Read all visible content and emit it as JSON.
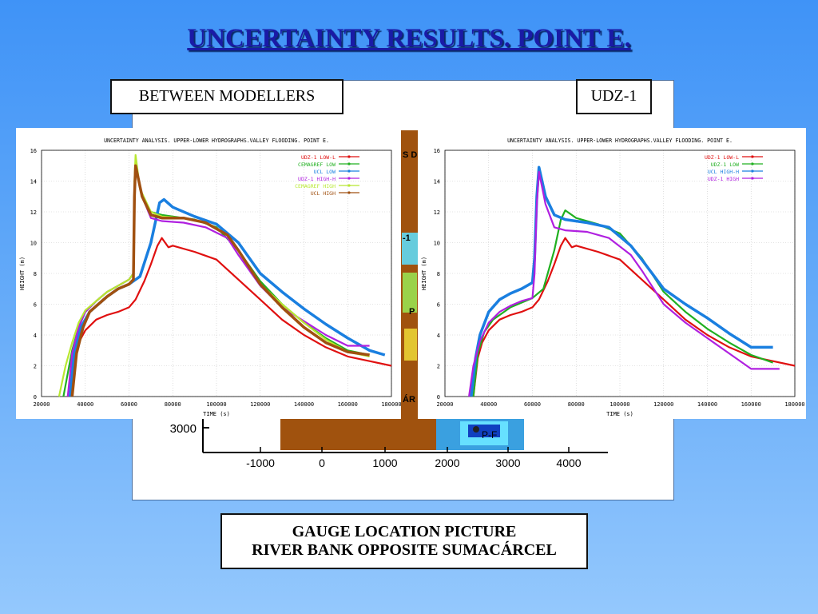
{
  "slide": {
    "title": "UNCERTAINTY RESULTS. POINT E.",
    "label_left": "BETWEEN MODELLERS",
    "label_right": "UDZ-1",
    "caption_line1": "GAUGE LOCATION PICTURE",
    "caption_line2": "RIVER BANK OPPOSITE SUMACÁRCEL"
  },
  "map": {
    "y_tick": "3000",
    "x_ticks": [
      "-1000",
      "0",
      "1000",
      "2000",
      "3000",
      "4000"
    ],
    "point_label": "P-F",
    "fragments": [
      "S D",
      "-1",
      "P",
      "ÁR"
    ]
  },
  "chart_data": [
    {
      "type": "line",
      "title": "UNCERTAINTY ANALYSIS. UPPER-LOWER HYDROGRAPHS.VALLEY FLOODING. POINT E.",
      "xlabel": "TIME (s)",
      "ylabel": "HEIGHT (m)",
      "xlim": [
        20000,
        180000
      ],
      "ylim": [
        0,
        16
      ],
      "xticks": [
        20000,
        40000,
        60000,
        80000,
        100000,
        120000,
        140000,
        160000,
        180000
      ],
      "yticks": [
        0,
        2,
        4,
        6,
        8,
        10,
        12,
        14,
        16
      ],
      "grid": true,
      "legend": "top-right",
      "series": [
        {
          "name": "UDZ-1 LOW-L",
          "color": "#e01010",
          "points": [
            [
              33000,
              0
            ],
            [
              35000,
              2.5
            ],
            [
              37000,
              3.5
            ],
            [
              40000,
              4.3
            ],
            [
              45000,
              5.0
            ],
            [
              50000,
              5.3
            ],
            [
              55000,
              5.5
            ],
            [
              60000,
              5.8
            ],
            [
              63000,
              6.3
            ],
            [
              67000,
              7.5
            ],
            [
              70000,
              8.6
            ],
            [
              73000,
              9.8
            ],
            [
              75000,
              10.3
            ],
            [
              78000,
              9.7
            ],
            [
              80000,
              9.8
            ],
            [
              90000,
              9.4
            ],
            [
              100000,
              8.9
            ],
            [
              110000,
              7.6
            ],
            [
              120000,
              6.3
            ],
            [
              130000,
              5.0
            ],
            [
              140000,
              4.0
            ],
            [
              150000,
              3.2
            ],
            [
              160000,
              2.6
            ],
            [
              170000,
              2.3
            ],
            [
              180000,
              2.0
            ]
          ]
        },
        {
          "name": "CEMAGREF LOW",
          "color": "#20b020",
          "points": [
            [
              30000,
              0
            ],
            [
              32000,
              1.5
            ],
            [
              34000,
              3.0
            ],
            [
              37000,
              4.5
            ],
            [
              40000,
              5.5
            ],
            [
              45000,
              6.2
            ],
            [
              50000,
              6.8
            ],
            [
              55000,
              7.2
            ],
            [
              60000,
              7.6
            ],
            [
              62000,
              8.0
            ],
            [
              62500,
              13.0
            ],
            [
              63000,
              15.0
            ],
            [
              66000,
              13.0
            ],
            [
              70000,
              12.0
            ],
            [
              75000,
              11.8
            ],
            [
              80000,
              11.7
            ],
            [
              90000,
              11.5
            ],
            [
              100000,
              11.0
            ],
            [
              110000,
              9.5
            ],
            [
              120000,
              7.5
            ],
            [
              130000,
              6.0
            ],
            [
              140000,
              4.8
            ],
            [
              150000,
              3.8
            ],
            [
              160000,
              3.0
            ],
            [
              170000,
              2.7
            ]
          ]
        },
        {
          "name": "UCL LOW",
          "color": "#1a7fe0",
          "points": [
            [
              33000,
              0
            ],
            [
              35000,
              3.0
            ],
            [
              38000,
              4.5
            ],
            [
              42000,
              5.5
            ],
            [
              50000,
              6.5
            ],
            [
              55000,
              7.0
            ],
            [
              60000,
              7.3
            ],
            [
              65000,
              7.8
            ],
            [
              70000,
              10.0
            ],
            [
              74000,
              12.6
            ],
            [
              76000,
              12.8
            ],
            [
              80000,
              12.3
            ],
            [
              90000,
              11.7
            ],
            [
              100000,
              11.2
            ],
            [
              110000,
              10.0
            ],
            [
              120000,
              8.0
            ],
            [
              130000,
              6.8
            ],
            [
              140000,
              5.7
            ],
            [
              150000,
              4.7
            ],
            [
              160000,
              3.8
            ],
            [
              170000,
              3.0
            ],
            [
              177000,
              2.7
            ]
          ]
        },
        {
          "name": "UDZ-1 HIGH-H",
          "color": "#b020e0",
          "points": [
            [
              32000,
              0
            ],
            [
              34000,
              2.8
            ],
            [
              37000,
              4.5
            ],
            [
              40000,
              5.5
            ],
            [
              45000,
              6.2
            ],
            [
              50000,
              6.8
            ],
            [
              55000,
              7.2
            ],
            [
              60000,
              7.6
            ],
            [
              62000,
              8.0
            ],
            [
              62500,
              13.0
            ],
            [
              63000,
              15.0
            ],
            [
              66000,
              13.0
            ],
            [
              70000,
              11.6
            ],
            [
              75000,
              11.4
            ],
            [
              85000,
              11.3
            ],
            [
              95000,
              11.0
            ],
            [
              105000,
              10.3
            ],
            [
              110000,
              9.2
            ],
            [
              120000,
              7.2
            ],
            [
              130000,
              5.8
            ],
            [
              140000,
              4.9
            ],
            [
              150000,
              4.0
            ],
            [
              160000,
              3.3
            ],
            [
              170000,
              3.3
            ]
          ]
        },
        {
          "name": "CEMAGREF HIGH",
          "color": "#b8e830",
          "points": [
            [
              28000,
              0
            ],
            [
              31000,
              2.0
            ],
            [
              34000,
              3.5
            ],
            [
              37000,
              4.8
            ],
            [
              40000,
              5.6
            ],
            [
              45000,
              6.2
            ],
            [
              50000,
              6.8
            ],
            [
              55000,
              7.2
            ],
            [
              60000,
              7.6
            ],
            [
              62000,
              8.0
            ],
            [
              62500,
              14.0
            ],
            [
              63000,
              15.7
            ],
            [
              65000,
              13.5
            ],
            [
              70000,
              12.0
            ],
            [
              75000,
              11.7
            ],
            [
              85000,
              11.6
            ],
            [
              95000,
              11.3
            ],
            [
              105000,
              10.5
            ],
            [
              110000,
              9.5
            ],
            [
              120000,
              7.3
            ],
            [
              130000,
              6.0
            ],
            [
              140000,
              4.8
            ],
            [
              150000,
              3.7
            ],
            [
              160000,
              2.9
            ],
            [
              170000,
              2.6
            ]
          ]
        },
        {
          "name": "UCL HIGH",
          "color": "#a05010",
          "points": [
            [
              34000,
              0
            ],
            [
              36000,
              2.8
            ],
            [
              39000,
              4.5
            ],
            [
              42000,
              5.5
            ],
            [
              50000,
              6.5
            ],
            [
              55000,
              7.0
            ],
            [
              60000,
              7.3
            ],
            [
              62000,
              7.6
            ],
            [
              62500,
              13.0
            ],
            [
              63000,
              15.0
            ],
            [
              66000,
              13.0
            ],
            [
              70000,
              11.8
            ],
            [
              75000,
              11.6
            ],
            [
              85000,
              11.6
            ],
            [
              95000,
              11.3
            ],
            [
              105000,
              10.5
            ],
            [
              110000,
              9.5
            ],
            [
              120000,
              7.3
            ],
            [
              130000,
              5.8
            ],
            [
              140000,
              4.5
            ],
            [
              150000,
              3.5
            ],
            [
              160000,
              2.9
            ],
            [
              170000,
              2.7
            ]
          ]
        }
      ]
    },
    {
      "type": "line",
      "title": "UNCERTAINTY ANALYSIS. UPPER-LOWER HYDROGRAPHS.VALLEY FLOODING. POINT E.",
      "xlabel": "TIME (s)",
      "ylabel": "HEIGHT (m)",
      "xlim": [
        20000,
        180000
      ],
      "ylim": [
        0,
        16
      ],
      "xticks": [
        20000,
        40000,
        60000,
        80000,
        100000,
        120000,
        140000,
        160000,
        180000
      ],
      "yticks": [
        0,
        2,
        4,
        6,
        8,
        10,
        12,
        14,
        16
      ],
      "grid": true,
      "legend": "top-right",
      "series": [
        {
          "name": "UDZ-1 LOW-L",
          "color": "#e01010",
          "points": [
            [
              33000,
              0
            ],
            [
              35000,
              2.5
            ],
            [
              37000,
              3.5
            ],
            [
              40000,
              4.3
            ],
            [
              45000,
              5.0
            ],
            [
              50000,
              5.3
            ],
            [
              55000,
              5.5
            ],
            [
              60000,
              5.8
            ],
            [
              63000,
              6.3
            ],
            [
              67000,
              7.5
            ],
            [
              70000,
              8.6
            ],
            [
              73000,
              9.8
            ],
            [
              75000,
              10.3
            ],
            [
              78000,
              9.7
            ],
            [
              80000,
              9.8
            ],
            [
              90000,
              9.4
            ],
            [
              100000,
              8.9
            ],
            [
              110000,
              7.6
            ],
            [
              120000,
              6.3
            ],
            [
              130000,
              5.0
            ],
            [
              140000,
              4.0
            ],
            [
              150000,
              3.2
            ],
            [
              160000,
              2.6
            ],
            [
              170000,
              2.3
            ],
            [
              180000,
              2.0
            ]
          ]
        },
        {
          "name": "UDZ-1 LOW",
          "color": "#20b020",
          "points": [
            [
              33000,
              0
            ],
            [
              35000,
              2.8
            ],
            [
              38000,
              4.2
            ],
            [
              42000,
              5.0
            ],
            [
              50000,
              5.8
            ],
            [
              60000,
              6.4
            ],
            [
              65000,
              7.0
            ],
            [
              70000,
              9.5
            ],
            [
              73000,
              11.5
            ],
            [
              75000,
              12.1
            ],
            [
              80000,
              11.6
            ],
            [
              90000,
              11.2
            ],
            [
              100000,
              10.6
            ],
            [
              110000,
              9.0
            ],
            [
              120000,
              6.8
            ],
            [
              130000,
              5.5
            ],
            [
              140000,
              4.4
            ],
            [
              150000,
              3.5
            ],
            [
              160000,
              2.7
            ],
            [
              170000,
              2.2
            ]
          ]
        },
        {
          "name": "UCL HIGH-H",
          "color": "#1a7fe0",
          "points": [
            [
              32000,
              0
            ],
            [
              34000,
              2.5
            ],
            [
              36000,
              4.0
            ],
            [
              40000,
              5.5
            ],
            [
              45000,
              6.3
            ],
            [
              50000,
              6.7
            ],
            [
              55000,
              7.0
            ],
            [
              60000,
              7.4
            ],
            [
              61000,
              9.0
            ],
            [
              62000,
              13.0
            ],
            [
              63000,
              14.9
            ],
            [
              66000,
              13.0
            ],
            [
              70000,
              11.8
            ],
            [
              75000,
              11.5
            ],
            [
              85000,
              11.3
            ],
            [
              95000,
              11.0
            ],
            [
              105000,
              9.8
            ],
            [
              110000,
              8.9
            ],
            [
              120000,
              7.0
            ],
            [
              130000,
              6.0
            ],
            [
              140000,
              5.1
            ],
            [
              150000,
              4.1
            ],
            [
              160000,
              3.2
            ],
            [
              170000,
              3.2
            ]
          ]
        },
        {
          "name": "UDZ-1 HIGH",
          "color": "#b020e0",
          "points": [
            [
              31000,
              0
            ],
            [
              33000,
              2.0
            ],
            [
              36000,
              3.6
            ],
            [
              40000,
              4.8
            ],
            [
              45000,
              5.5
            ],
            [
              50000,
              5.9
            ],
            [
              55000,
              6.2
            ],
            [
              60000,
              6.4
            ],
            [
              61000,
              8.0
            ],
            [
              62000,
              12.5
            ],
            [
              63000,
              14.6
            ],
            [
              66000,
              12.5
            ],
            [
              70000,
              11.0
            ],
            [
              75000,
              10.8
            ],
            [
              85000,
              10.7
            ],
            [
              95000,
              10.3
            ],
            [
              105000,
              9.2
            ],
            [
              110000,
              8.2
            ],
            [
              120000,
              6.0
            ],
            [
              130000,
              4.8
            ],
            [
              140000,
              3.8
            ],
            [
              150000,
              2.8
            ],
            [
              160000,
              1.8
            ],
            [
              170000,
              1.8
            ],
            [
              173000,
              1.8
            ]
          ]
        }
      ]
    }
  ]
}
